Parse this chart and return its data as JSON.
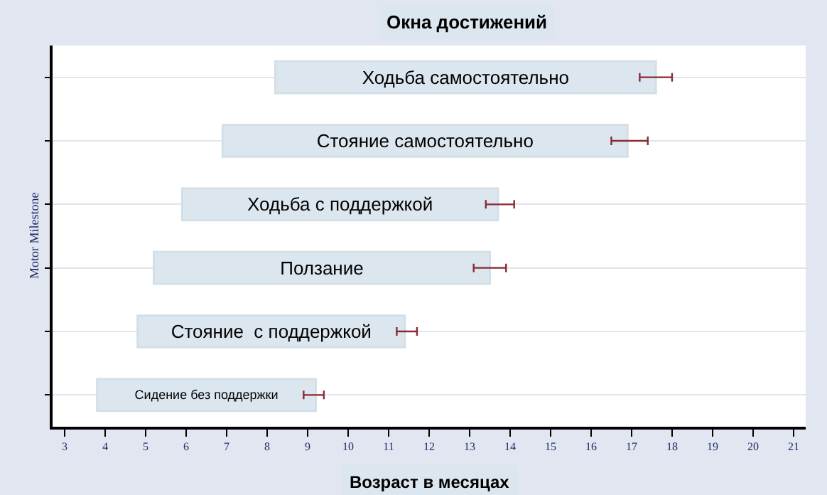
{
  "chart_data": {
    "type": "bar",
    "orientation": "horizontal",
    "title": "Окна достижений",
    "xlabel": "Возраст в месяцах",
    "ylabel": "Motor Milestone",
    "categories": [
      "Ходьба самостоятельно",
      "Стояние самостоятельно",
      "Ходьба с поддержкой",
      "Ползание",
      "Стояние  с поддержкой",
      "Сидение без поддержки"
    ],
    "base": [
      8.2,
      6.9,
      5.9,
      5.2,
      4.8,
      3.8
    ],
    "values": [
      9.4,
      10.0,
      7.8,
      8.3,
      6.6,
      5.4
    ],
    "errors": [
      [
        17.2,
        18.0
      ],
      [
        16.5,
        17.4
      ],
      [
        13.4,
        14.1
      ],
      [
        13.1,
        13.9
      ],
      [
        11.2,
        11.7
      ],
      [
        8.9,
        9.4
      ]
    ],
    "color": "#dce6ef",
    "xlim": [
      2.7,
      21.3
    ],
    "xticks": [
      3,
      4,
      5,
      6,
      7,
      8,
      9,
      10,
      11,
      12,
      13,
      14,
      15,
      16,
      17,
      18,
      19,
      20,
      21
    ],
    "grid": "y",
    "tick_labels": "x"
  }
}
